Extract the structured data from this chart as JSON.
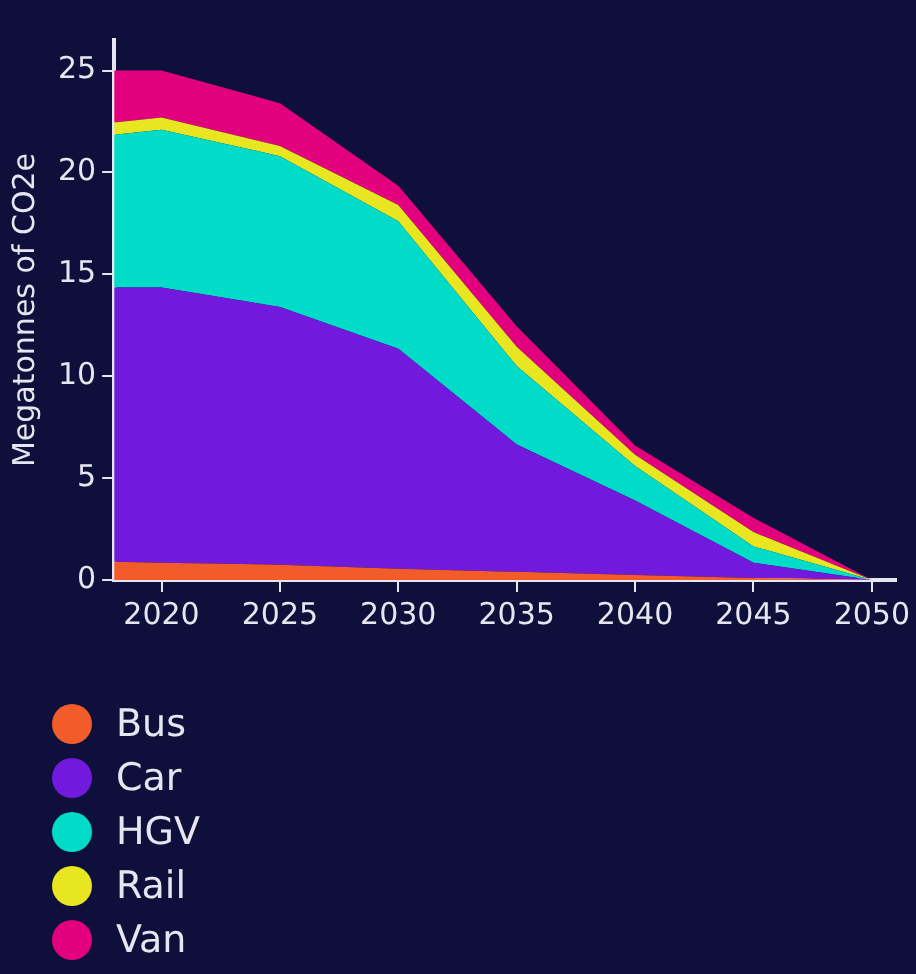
{
  "chart_data": {
    "type": "area",
    "stacked": true,
    "ylabel": "Megatonnes of CO2e",
    "x": [
      2018,
      2020,
      2025,
      2030,
      2035,
      2040,
      2045,
      2050
    ],
    "xlim": [
      2018,
      2051
    ],
    "xticks": [
      2020,
      2025,
      2030,
      2035,
      2040,
      2045,
      2050
    ],
    "ylim": [
      0,
      26.5
    ],
    "yticks": [
      0,
      5,
      10,
      15,
      20,
      25
    ],
    "grid": false,
    "legend": "bottom left",
    "series": [
      {
        "name": "Bus",
        "color": "#f25c2a",
        "values": [
          0.9,
          0.85,
          0.75,
          0.55,
          0.4,
          0.25,
          0.1,
          0
        ]
      },
      {
        "name": "Car",
        "color": "#7119dc",
        "values": [
          13.45,
          13.5,
          12.65,
          10.8,
          6.25,
          3.65,
          0.75,
          0
        ]
      },
      {
        "name": "HGV",
        "color": "#00dcc8",
        "values": [
          7.5,
          7.75,
          7.4,
          6.25,
          3.85,
          1.7,
          0.8,
          0
        ]
      },
      {
        "name": "Rail",
        "color": "#e8e620",
        "values": [
          0.6,
          0.6,
          0.5,
          0.8,
          0.95,
          0.55,
          0.7,
          0
        ]
      },
      {
        "name": "Van",
        "color": "#e3007f",
        "values": [
          2.55,
          2.3,
          2.1,
          0.95,
          1.0,
          0.45,
          0.7,
          0
        ]
      }
    ]
  }
}
